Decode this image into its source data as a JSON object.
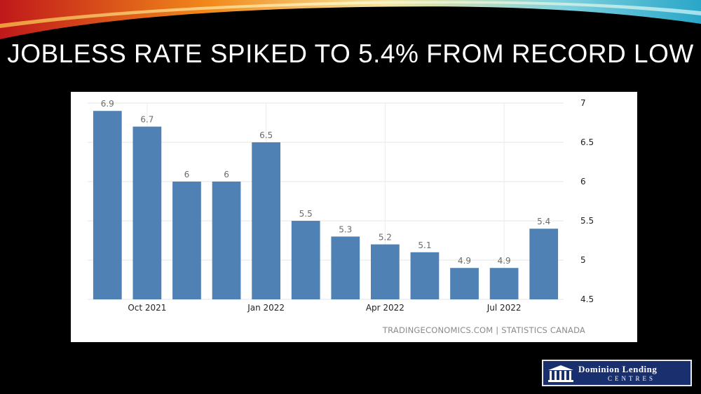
{
  "slide": {
    "title": "JOBLESS RATE SPIKED TO 5.4% FROM RECORD LOW",
    "source": "TRADINGECONOMICS.COM | STATISTICS CANADA",
    "logo_line1": "Dominion Lending",
    "logo_line2": "CENTRES"
  },
  "colors": {
    "bar": "#4f81b4",
    "background": "#000000",
    "panel": "#ffffff",
    "logo": "#1a2f6e"
  },
  "chart_data": {
    "type": "bar",
    "title": "",
    "xlabel": "",
    "ylabel": "",
    "values": [
      6.9,
      6.7,
      6,
      6,
      6.5,
      5.5,
      5.3,
      5.2,
      5.1,
      4.9,
      4.9,
      5.4
    ],
    "value_labels": [
      "6.9",
      "6.7",
      "6",
      "6",
      "6.5",
      "5.5",
      "5.3",
      "5.2",
      "5.1",
      "4.9",
      "4.9",
      "5.4"
    ],
    "x_ticks": [
      {
        "index": 1,
        "label": "Oct 2021"
      },
      {
        "index": 4,
        "label": "Jan 2022"
      },
      {
        "index": 7,
        "label": "Apr 2022"
      },
      {
        "index": 10,
        "label": "Jul 2022"
      }
    ],
    "ylim": [
      4.5,
      7
    ],
    "y_ticks": [
      "7",
      "6.5",
      "6",
      "5.5",
      "5",
      "4.5"
    ],
    "y_axis_side": "right",
    "grid": true
  }
}
